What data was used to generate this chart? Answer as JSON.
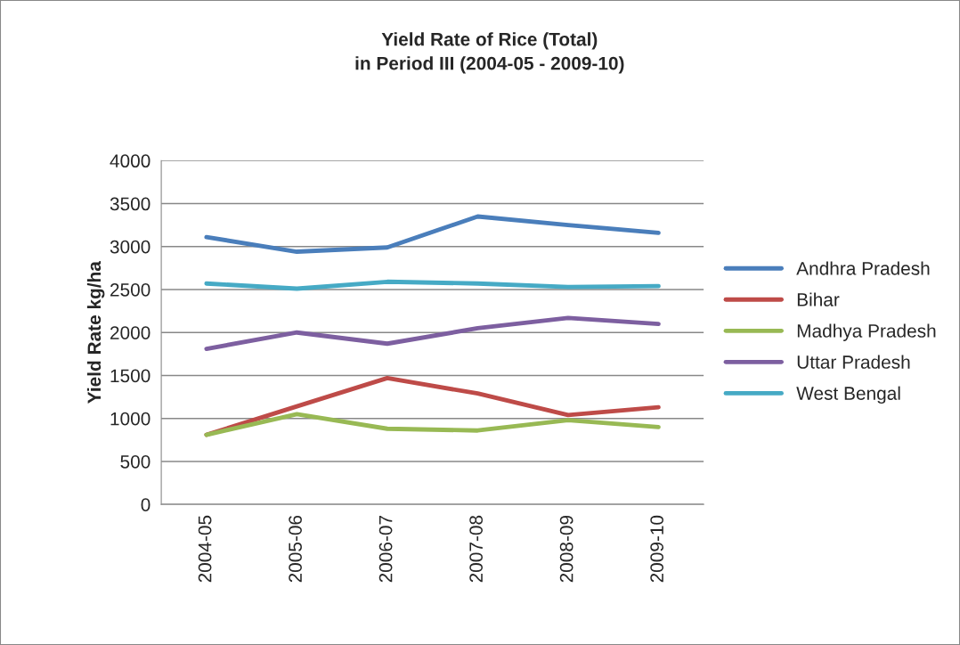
{
  "chart_data": {
    "type": "line",
    "title": "Yield Rate of Rice (Total)\nin Period III (2004-05 - 2009-10)",
    "ylabel": "Yield Rate kg/ha",
    "categories": [
      "2004-05",
      "2005-06",
      "2006-07",
      "2007-08",
      "2008-09",
      "2009-10"
    ],
    "series": [
      {
        "name": "Andhra Pradesh",
        "color": "#4a7ebb",
        "values": [
          3110,
          2940,
          2990,
          3350,
          3250,
          3160
        ]
      },
      {
        "name": "Bihar",
        "color": "#be4b48",
        "values": [
          810,
          1140,
          1470,
          1290,
          1040,
          1130
        ]
      },
      {
        "name": "Madhya Pradesh",
        "color": "#98b954",
        "values": [
          810,
          1050,
          880,
          860,
          980,
          900
        ]
      },
      {
        "name": "Uttar Pradesh",
        "color": "#7d5fa0",
        "values": [
          1810,
          2000,
          1870,
          2050,
          2170,
          2100
        ]
      },
      {
        "name": "West Bengal",
        "color": "#46aac5",
        "values": [
          2570,
          2510,
          2590,
          2570,
          2530,
          2540
        ]
      }
    ],
    "ylim": [
      0,
      4000
    ],
    "yticks": [
      0,
      500,
      1000,
      1500,
      2000,
      2500,
      3000,
      3500,
      4000
    ],
    "grid": "y",
    "legend": "right",
    "marker": "none",
    "line_style": "solid"
  }
}
